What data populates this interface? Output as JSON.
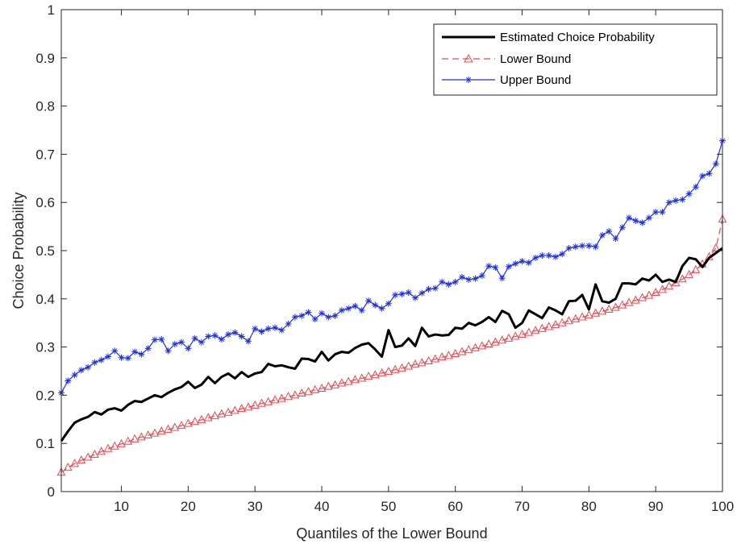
{
  "chart_data": {
    "type": "line",
    "title": "",
    "xlabel": "Quantiles of the Lower Bound",
    "ylabel": "Choice Probability",
    "xlim": [
      1,
      100
    ],
    "ylim": [
      0,
      1
    ],
    "x_ticks": [
      10,
      20,
      30,
      40,
      50,
      60,
      70,
      80,
      90,
      100
    ],
    "x_tick_labels": [
      "10",
      "20",
      "30",
      "40",
      "50",
      "60",
      "70",
      "80",
      "90",
      "100"
    ],
    "y_ticks": [
      0,
      0.1,
      0.2,
      0.3,
      0.4,
      0.5,
      0.6,
      0.7,
      0.8,
      0.9,
      1
    ],
    "y_tick_labels": [
      "0",
      "0.1",
      "0.2",
      "0.3",
      "0.4",
      "0.5",
      "0.6",
      "0.7",
      "0.8",
      "0.9",
      "1"
    ],
    "grid": false,
    "legend_position": "top-right",
    "x": [
      1,
      2,
      3,
      4,
      5,
      6,
      7,
      8,
      9,
      10,
      11,
      12,
      13,
      14,
      15,
      16,
      17,
      18,
      19,
      20,
      21,
      22,
      23,
      24,
      25,
      26,
      27,
      28,
      29,
      30,
      31,
      32,
      33,
      34,
      35,
      36,
      37,
      38,
      39,
      40,
      41,
      42,
      43,
      44,
      45,
      46,
      47,
      48,
      49,
      50,
      51,
      52,
      53,
      54,
      55,
      56,
      57,
      58,
      59,
      60,
      61,
      62,
      63,
      64,
      65,
      66,
      67,
      68,
      69,
      70,
      71,
      72,
      73,
      74,
      75,
      76,
      77,
      78,
      79,
      80,
      81,
      82,
      83,
      84,
      85,
      86,
      87,
      88,
      89,
      90,
      91,
      92,
      93,
      94,
      95,
      96,
      97,
      98,
      99,
      100
    ],
    "series": [
      {
        "name": "Estimated Choice Probability",
        "color": "#000000",
        "style": "solid-thick",
        "values": [
          0.105,
          0.125,
          0.143,
          0.15,
          0.155,
          0.165,
          0.16,
          0.17,
          0.173,
          0.168,
          0.18,
          0.188,
          0.186,
          0.193,
          0.2,
          0.196,
          0.205,
          0.212,
          0.217,
          0.228,
          0.215,
          0.222,
          0.238,
          0.225,
          0.238,
          0.245,
          0.235,
          0.248,
          0.238,
          0.245,
          0.248,
          0.265,
          0.26,
          0.262,
          0.258,
          0.255,
          0.276,
          0.275,
          0.27,
          0.29,
          0.272,
          0.285,
          0.29,
          0.288,
          0.298,
          0.305,
          0.308,
          0.295,
          0.28,
          0.335,
          0.3,
          0.303,
          0.318,
          0.302,
          0.34,
          0.322,
          0.326,
          0.324,
          0.325,
          0.34,
          0.338,
          0.35,
          0.345,
          0.352,
          0.362,
          0.352,
          0.375,
          0.368,
          0.34,
          0.35,
          0.376,
          0.368,
          0.36,
          0.382,
          0.376,
          0.368,
          0.395,
          0.396,
          0.408,
          0.378,
          0.43,
          0.395,
          0.392,
          0.4,
          0.432,
          0.432,
          0.43,
          0.442,
          0.438,
          0.45,
          0.435,
          0.44,
          0.435,
          0.468,
          0.485,
          0.482,
          0.466,
          0.485,
          0.495,
          0.505
        ]
      },
      {
        "name": "Lower Bound",
        "color": "#e8474f",
        "style": "dashed-triangle",
        "values": [
          0.04,
          0.05,
          0.058,
          0.065,
          0.071,
          0.077,
          0.083,
          0.089,
          0.094,
          0.099,
          0.104,
          0.109,
          0.113,
          0.117,
          0.121,
          0.125,
          0.129,
          0.133,
          0.137,
          0.141,
          0.145,
          0.149,
          0.153,
          0.157,
          0.161,
          0.164,
          0.168,
          0.172,
          0.175,
          0.179,
          0.183,
          0.186,
          0.19,
          0.193,
          0.197,
          0.2,
          0.204,
          0.207,
          0.211,
          0.214,
          0.218,
          0.221,
          0.225,
          0.228,
          0.232,
          0.235,
          0.239,
          0.242,
          0.246,
          0.249,
          0.253,
          0.256,
          0.26,
          0.264,
          0.267,
          0.271,
          0.275,
          0.279,
          0.282,
          0.286,
          0.29,
          0.294,
          0.298,
          0.302,
          0.306,
          0.31,
          0.314,
          0.318,
          0.322,
          0.326,
          0.33,
          0.334,
          0.338,
          0.342,
          0.346,
          0.35,
          0.354,
          0.358,
          0.362,
          0.366,
          0.37,
          0.374,
          0.378,
          0.382,
          0.387,
          0.392,
          0.397,
          0.402,
          0.407,
          0.413,
          0.419,
          0.426,
          0.433,
          0.441,
          0.45,
          0.46,
          0.472,
          0.487,
          0.505,
          0.565
        ]
      },
      {
        "name": "Upper Bound",
        "color": "#1f2fe0",
        "style": "solid-star",
        "values": [
          0.205,
          0.23,
          0.242,
          0.252,
          0.258,
          0.268,
          0.273,
          0.28,
          0.292,
          0.278,
          0.277,
          0.29,
          0.285,
          0.297,
          0.315,
          0.316,
          0.292,
          0.306,
          0.31,
          0.297,
          0.318,
          0.31,
          0.322,
          0.324,
          0.316,
          0.326,
          0.33,
          0.322,
          0.312,
          0.338,
          0.332,
          0.338,
          0.34,
          0.335,
          0.348,
          0.362,
          0.365,
          0.372,
          0.358,
          0.37,
          0.362,
          0.365,
          0.376,
          0.38,
          0.385,
          0.376,
          0.396,
          0.387,
          0.38,
          0.39,
          0.408,
          0.41,
          0.413,
          0.402,
          0.412,
          0.42,
          0.422,
          0.435,
          0.43,
          0.435,
          0.445,
          0.44,
          0.442,
          0.448,
          0.468,
          0.465,
          0.443,
          0.467,
          0.473,
          0.478,
          0.475,
          0.485,
          0.49,
          0.49,
          0.487,
          0.493,
          0.505,
          0.508,
          0.51,
          0.51,
          0.508,
          0.532,
          0.54,
          0.525,
          0.548,
          0.568,
          0.562,
          0.558,
          0.568,
          0.58,
          0.58,
          0.6,
          0.604,
          0.606,
          0.618,
          0.632,
          0.655,
          0.66,
          0.68,
          0.728
        ]
      }
    ]
  }
}
